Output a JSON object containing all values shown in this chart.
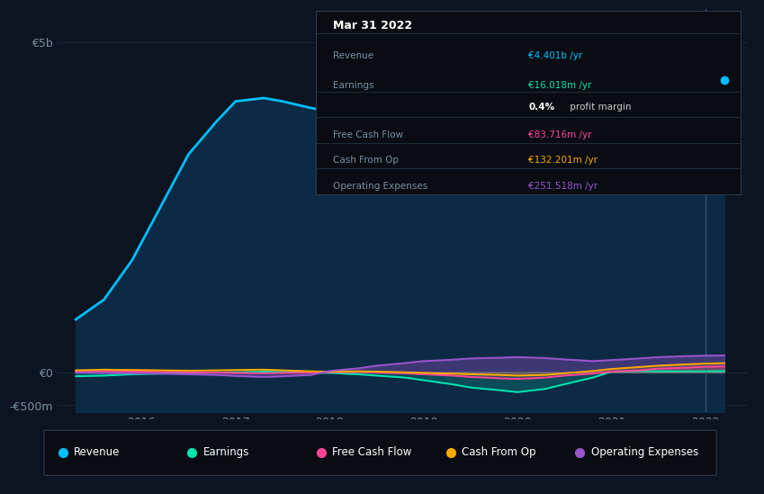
{
  "bg_color": "#0d1421",
  "plot_bg_color": "#0d1421",
  "grid_color": "#1a2535",
  "years": [
    2015.3,
    2015.6,
    2015.9,
    2016.2,
    2016.5,
    2016.8,
    2017.0,
    2017.3,
    2017.5,
    2017.8,
    2018.0,
    2018.3,
    2018.5,
    2018.8,
    2019.0,
    2019.3,
    2019.5,
    2019.8,
    2020.0,
    2020.3,
    2020.5,
    2020.8,
    2021.0,
    2021.3,
    2021.5,
    2021.8,
    2022.0,
    2022.2
  ],
  "revenue": [
    800,
    1100,
    1700,
    2500,
    3300,
    3800,
    4100,
    4150,
    4100,
    4000,
    3950,
    3900,
    3850,
    3780,
    3750,
    3700,
    3680,
    3650,
    3620,
    3700,
    3820,
    4000,
    4150,
    4250,
    4320,
    4380,
    4401,
    4420
  ],
  "earnings": [
    -60,
    -50,
    -30,
    -20,
    -10,
    -5,
    0,
    10,
    5,
    -5,
    -10,
    -30,
    -50,
    -80,
    -120,
    -180,
    -230,
    -270,
    -300,
    -250,
    -180,
    -80,
    10,
    20,
    15,
    16,
    16,
    18
  ],
  "free_cash_flow": [
    10,
    15,
    10,
    5,
    0,
    -5,
    -10,
    -15,
    -10,
    -5,
    0,
    5,
    -5,
    -15,
    -30,
    -50,
    -70,
    -90,
    -100,
    -80,
    -50,
    -20,
    10,
    30,
    55,
    70,
    84,
    88
  ],
  "cash_from_op": [
    30,
    40,
    35,
    30,
    25,
    30,
    35,
    40,
    30,
    15,
    10,
    15,
    10,
    0,
    -10,
    -20,
    -30,
    -40,
    -50,
    -40,
    -15,
    20,
    50,
    80,
    100,
    120,
    132,
    138
  ],
  "operating_expenses": [
    -5,
    -10,
    -15,
    -20,
    -30,
    -40,
    -55,
    -70,
    -60,
    -40,
    20,
    60,
    100,
    140,
    170,
    190,
    210,
    220,
    230,
    215,
    195,
    170,
    185,
    210,
    230,
    245,
    252,
    255
  ],
  "revenue_color": "#00bfff",
  "earnings_color": "#00e5b0",
  "free_cash_flow_color": "#ff4499",
  "cash_from_op_color": "#ffaa00",
  "operating_expenses_color": "#9955cc",
  "fill_color_revenue": "#0d2a45",
  "ylim_min": -0.6,
  "ylim_max": 5.5,
  "ytick_vals": [
    -0.5,
    0.0,
    5.0
  ],
  "ytick_labels": [
    "-€500m",
    "€0",
    "€5b"
  ],
  "xlim_min": 2015.1,
  "xlim_max": 2022.45,
  "xticks": [
    2016,
    2017,
    2018,
    2019,
    2020,
    2021,
    2022
  ],
  "vertical_line_x": 2022.0,
  "tooltip_title": "Mar 31 2022",
  "tooltip_rows": [
    {
      "label": "Revenue",
      "value": "€4.401b /yr",
      "value_color": "#00bfff",
      "divider_above": false
    },
    {
      "label": "Earnings",
      "value": "€16.018m /yr",
      "value_color": "#00e5b0",
      "divider_above": false
    },
    {
      "label": "",
      "value": "0.4% profit margin",
      "value_color": "#ffffff",
      "divider_above": false
    },
    {
      "label": "Free Cash Flow",
      "value": "€83.716m /yr",
      "value_color": "#ff4499",
      "divider_above": true
    },
    {
      "label": "Cash From Op",
      "value": "€132.201m /yr",
      "value_color": "#ffaa00",
      "divider_above": true
    },
    {
      "label": "Operating Expenses",
      "value": "€251.518m /yr",
      "value_color": "#9955cc",
      "divider_above": true
    }
  ],
  "legend_items": [
    {
      "label": "Revenue",
      "color": "#00bfff"
    },
    {
      "label": "Earnings",
      "color": "#00e5b0"
    },
    {
      "label": "Free Cash Flow",
      "color": "#ff4499"
    },
    {
      "label": "Cash From Op",
      "color": "#ffaa00"
    },
    {
      "label": "Operating Expenses",
      "color": "#9955cc"
    }
  ]
}
